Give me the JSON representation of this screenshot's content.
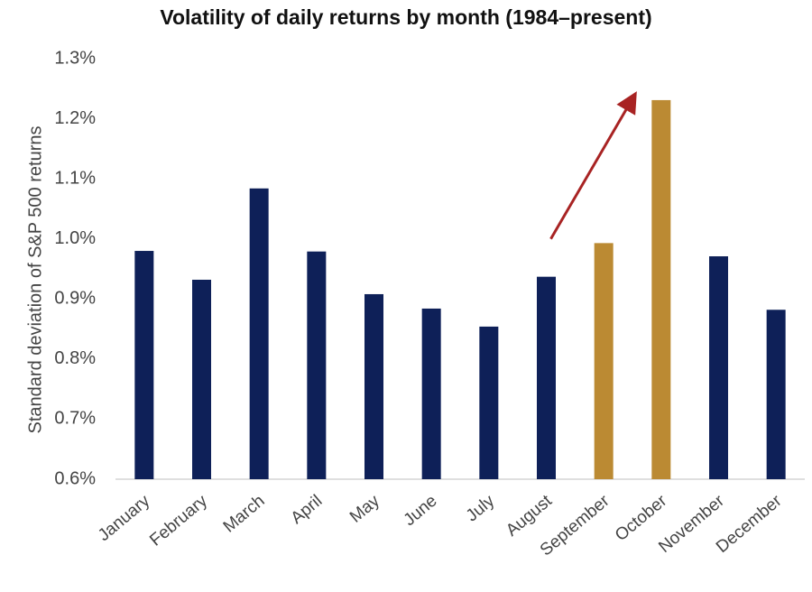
{
  "chart_data": {
    "type": "bar",
    "title": "Volatility of daily returns by month (1984–present)",
    "xlabel": "",
    "ylabel": "Standard deviation of S&P 500 returns",
    "ylim": [
      0.6,
      1.3
    ],
    "yticks": [
      "0.6%",
      "0.7%",
      "0.8%",
      "0.9%",
      "1.0%",
      "1.1%",
      "1.2%",
      "1.3%"
    ],
    "ytick_values": [
      0.6,
      0.7,
      0.8,
      0.9,
      1.0,
      1.1,
      1.2,
      1.3
    ],
    "categories": [
      "January",
      "February",
      "March",
      "April",
      "May",
      "June",
      "July",
      "August",
      "September",
      "October",
      "November",
      "December"
    ],
    "values": [
      0.98,
      0.932,
      1.084,
      0.979,
      0.908,
      0.884,
      0.854,
      0.937,
      0.993,
      1.231,
      0.971,
      0.882
    ],
    "grid": false,
    "legend": "none",
    "colors": {
      "bar_default": "#0e2058",
      "bar_highlight": "#bb8a33",
      "arrow": "#a82323",
      "text": "#444444",
      "axis": "#bfbfbf"
    },
    "highlighted_categories": [
      "September",
      "October"
    ],
    "annotation": {
      "type": "arrow",
      "from_category": "August",
      "to_category": "October",
      "from_value": 1.0,
      "to_value": 1.235
    }
  }
}
